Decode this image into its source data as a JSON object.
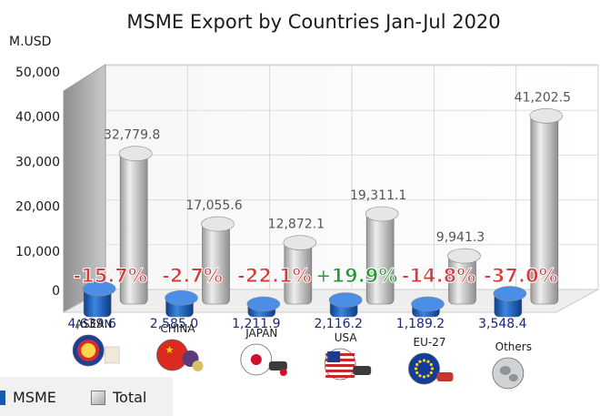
{
  "chart_data": {
    "type": "bar",
    "title": "MSME Export  by Countries Jan-Jul 2020",
    "ylabel": "M.USD",
    "ylim": [
      0,
      50000
    ],
    "yticks": [
      "0",
      "10,000",
      "20,000",
      "30,000",
      "40,000",
      "50,000"
    ],
    "categories": [
      "ASEAN",
      "CHINA",
      "JAPAN",
      "USA",
      "EU-27",
      "Others"
    ],
    "series": [
      {
        "name": "MSME",
        "color": "#1a5fc0",
        "values": [
          4639.6,
          2585.0,
          1211.9,
          2116.2,
          1189.2,
          3548.4
        ],
        "labels": [
          "4,639.6",
          "2,585.0",
          "1,211.9",
          "2,116.2",
          "1,189.2",
          "3,548.4"
        ]
      },
      {
        "name": "Total",
        "color": "#c8c8c8",
        "values": [
          32779.8,
          17055.6,
          12872.1,
          19311.1,
          9941.3,
          41202.5
        ],
        "labels": [
          "32,779.8",
          "17,055.6",
          "12,872.1",
          "19,311.1",
          "9,941.3",
          "41,202.5"
        ]
      }
    ],
    "annotations": [
      "-15.7%",
      "-2.7%",
      "-22.1%",
      "+19.9%",
      "-14.8%",
      "-37.0%"
    ],
    "annotation_colors": [
      "#d63b3b",
      "#d63b3b",
      "#d63b3b",
      "#1f9a2e",
      "#d63b3b",
      "#d63b3b"
    ],
    "icons": [
      "asean-emblem-icon",
      "china-flag-icon",
      "japan-flag-icon",
      "usa-flag-icon",
      "eu-flag-icon",
      "globe-icon"
    ],
    "legend": {
      "position": "bottom-left",
      "entries": [
        "MSME",
        "Total"
      ]
    },
    "grid": true
  }
}
